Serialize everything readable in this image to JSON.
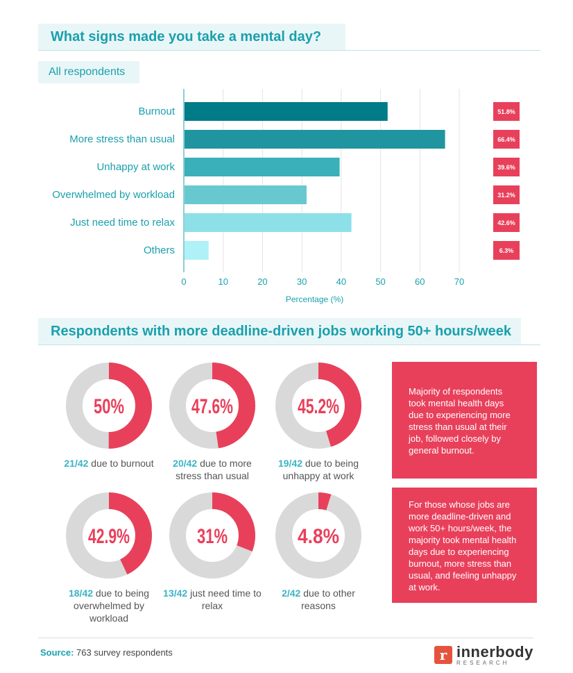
{
  "colors": {
    "teal_title": "#1aa0ad",
    "red": "#e8405b",
    "gray_ring": "#d9d9d9",
    "bar_colors": [
      "#007b88",
      "#20959f",
      "#3ab0ba",
      "#67c9cf",
      "#8de0e8",
      "#aef1f6"
    ]
  },
  "titles": {
    "main": "What signs made you take a mental day?",
    "subtitle": "All respondents",
    "section2": "Respondents with more deadline-driven jobs working 50+ hours/week"
  },
  "chart_data": [
    {
      "type": "bar",
      "orientation": "horizontal",
      "title": "What signs made you take a mental day?",
      "subtitle": "All respondents",
      "categories": [
        "Burnout",
        "More stress than usual",
        "Unhappy at work",
        "Overwhelmed by workload",
        "Just need time to relax",
        "Others"
      ],
      "values": [
        51.8,
        66.4,
        39.6,
        31.2,
        42.6,
        6.3
      ],
      "value_labels": [
        "51.8%",
        "66.4%",
        "39.6%",
        "31.2%",
        "42.6%",
        "6.3%"
      ],
      "xlabel": "Percentage (%)",
      "xlim": [
        0,
        70
      ],
      "xticks": [
        0,
        10,
        20,
        30,
        40,
        50,
        60,
        70
      ],
      "grid": true
    },
    {
      "type": "pie",
      "style": "donut",
      "title": "Respondents with more deadline-driven jobs working 50+ hours/week",
      "slices": [
        {
          "label": "50%",
          "value": 50,
          "fraction": "21/42",
          "caption": "due to burnout"
        },
        {
          "label": "47.6%",
          "value": 47.6,
          "fraction": "20/42",
          "caption": "due to more stress than usual"
        },
        {
          "label": "45.2%",
          "value": 45.2,
          "fraction": "19/42",
          "caption": "due to being unhappy at work"
        },
        {
          "label": "42.9%",
          "value": 42.9,
          "fraction": "18/42",
          "caption": "due to being overwhelmed by workload"
        },
        {
          "label": "31%",
          "value": 31,
          "fraction": "13/42",
          "caption": "just need time to relax"
        },
        {
          "label": "4.8%",
          "value": 4.8,
          "fraction": "2/42",
          "caption": "due to other reasons"
        }
      ]
    }
  ],
  "notes": [
    "Majority of respondents took mental health days due to experiencing more stress than usual at their job, followed closely by general burnout.",
    "For those whose jobs are more deadline-driven and work 50+ hours/week, the majority took mental health days due to experiencing burnout, more stress than usual, and feeling unhappy at work."
  ],
  "footer": {
    "source_label": "Source:",
    "source_text": "763 survey respondents",
    "logo_mark": "r",
    "logo_name": "innerbody",
    "logo_sub": "RESEARCH"
  }
}
